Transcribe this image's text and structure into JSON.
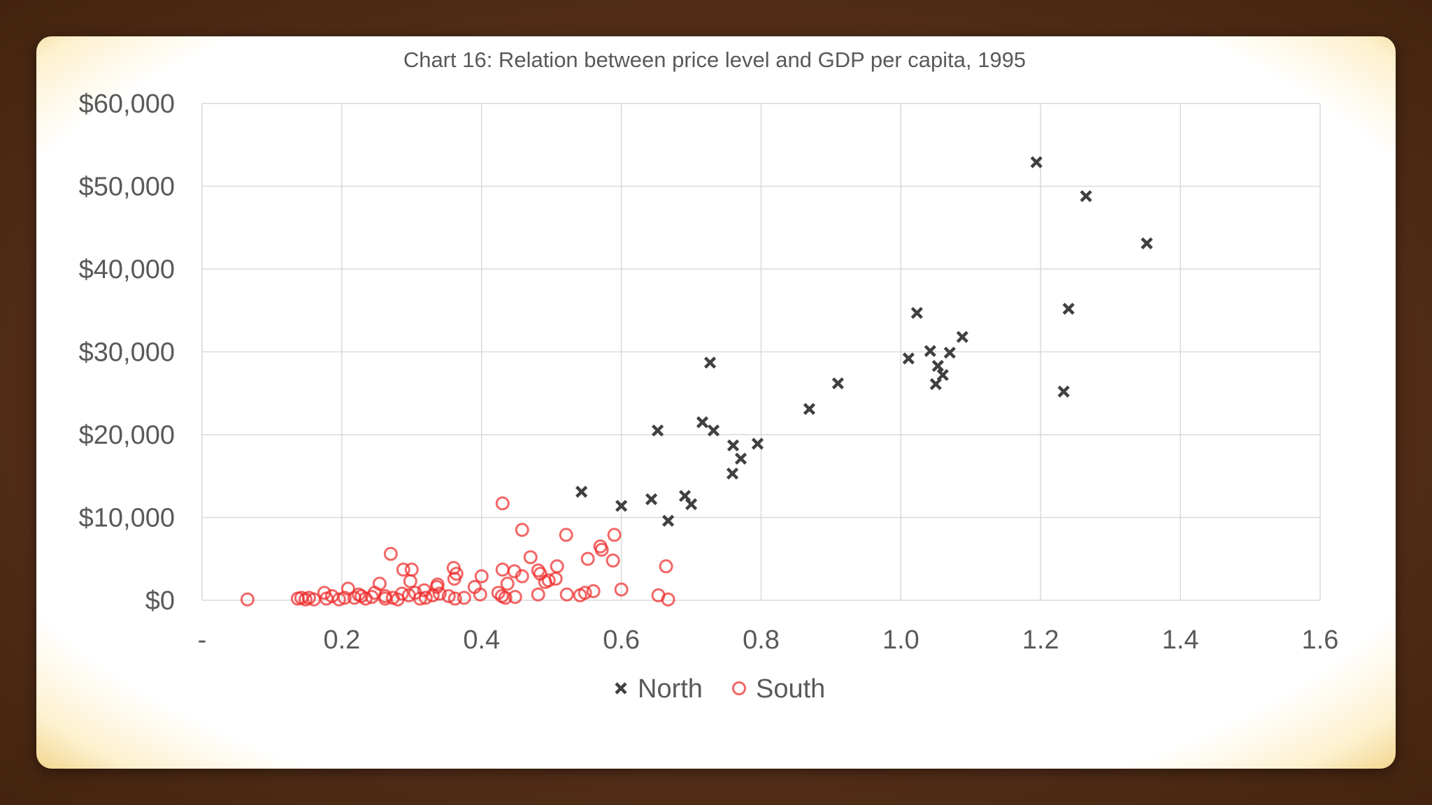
{
  "chart_data": {
    "type": "scatter",
    "title": "Chart 16: Relation between price level and GDP per capita, 1995",
    "xlabel": "",
    "ylabel": "",
    "xlim": [
      0,
      1.6
    ],
    "ylim": [
      0,
      60000
    ],
    "x_ticks": [
      {
        "value": 0,
        "label": "-"
      },
      {
        "value": 0.2,
        "label": "0.2"
      },
      {
        "value": 0.4,
        "label": "0.4"
      },
      {
        "value": 0.6,
        "label": "0.6"
      },
      {
        "value": 0.8,
        "label": "0.8"
      },
      {
        "value": 1.0,
        "label": "1.0"
      },
      {
        "value": 1.2,
        "label": "1.2"
      },
      {
        "value": 1.4,
        "label": "1.4"
      },
      {
        "value": 1.6,
        "label": "1.6"
      }
    ],
    "y_ticks": [
      {
        "value": 0,
        "label": "$0"
      },
      {
        "value": 10000,
        "label": "$10,000"
      },
      {
        "value": 20000,
        "label": "$20,000"
      },
      {
        "value": 30000,
        "label": "$30,000"
      },
      {
        "value": 40000,
        "label": "$40,000"
      },
      {
        "value": 50000,
        "label": "$50,000"
      },
      {
        "value": 60000,
        "label": "$60,000"
      }
    ],
    "grid": true,
    "legend_position": "bottom",
    "series": [
      {
        "name": "North",
        "marker": "x",
        "color": "#404040",
        "points": [
          [
            1.194,
            52900
          ],
          [
            1.265,
            48800
          ],
          [
            1.352,
            43100
          ],
          [
            1.24,
            35200
          ],
          [
            1.023,
            34700
          ],
          [
            1.088,
            31800
          ],
          [
            1.07,
            29900
          ],
          [
            1.042,
            30100
          ],
          [
            1.011,
            29200
          ],
          [
            1.053,
            28300
          ],
          [
            1.06,
            27200
          ],
          [
            1.05,
            26100
          ],
          [
            1.233,
            25200
          ],
          [
            0.91,
            26200
          ],
          [
            0.869,
            23100
          ],
          [
            0.727,
            28700
          ],
          [
            0.716,
            21500
          ],
          [
            0.732,
            20500
          ],
          [
            0.652,
            20500
          ],
          [
            0.76,
            18700
          ],
          [
            0.795,
            18900
          ],
          [
            0.771,
            17100
          ],
          [
            0.759,
            15300
          ],
          [
            0.543,
            13100
          ],
          [
            0.6,
            11400
          ],
          [
            0.643,
            12200
          ],
          [
            0.691,
            12600
          ],
          [
            0.7,
            11600
          ],
          [
            0.667,
            9600
          ]
        ]
      },
      {
        "name": "South",
        "marker": "o",
        "color": "#ee2b2b",
        "points": [
          [
            0.43,
            11700
          ],
          [
            0.458,
            8500
          ],
          [
            0.521,
            7900
          ],
          [
            0.59,
            7900
          ],
          [
            0.57,
            6500
          ],
          [
            0.572,
            6100
          ],
          [
            0.552,
            5000
          ],
          [
            0.588,
            4800
          ],
          [
            0.664,
            4100
          ],
          [
            0.508,
            4100
          ],
          [
            0.47,
            5200
          ],
          [
            0.481,
            3600
          ],
          [
            0.484,
            3200
          ],
          [
            0.447,
            3500
          ],
          [
            0.458,
            2900
          ],
          [
            0.43,
            3700
          ],
          [
            0.437,
            2000
          ],
          [
            0.4,
            2900
          ],
          [
            0.39,
            1600
          ],
          [
            0.36,
            3900
          ],
          [
            0.364,
            3200
          ],
          [
            0.361,
            2600
          ],
          [
            0.337,
            1900
          ],
          [
            0.336,
            1600
          ],
          [
            0.3,
            3700
          ],
          [
            0.288,
            3700
          ],
          [
            0.27,
            5600
          ],
          [
            0.298,
            2300
          ],
          [
            0.254,
            2000
          ],
          [
            0.209,
            1400
          ],
          [
            0.175,
            900
          ],
          [
            0.496,
            2400
          ],
          [
            0.506,
            2600
          ],
          [
            0.491,
            2200
          ],
          [
            0.6,
            1300
          ],
          [
            0.56,
            1100
          ],
          [
            0.548,
            900
          ],
          [
            0.522,
            700
          ],
          [
            0.541,
            600
          ],
          [
            0.653,
            600
          ],
          [
            0.667,
            100
          ],
          [
            0.481,
            700
          ],
          [
            0.448,
            400
          ],
          [
            0.424,
            900
          ],
          [
            0.429,
            500
          ],
          [
            0.434,
            300
          ],
          [
            0.398,
            700
          ],
          [
            0.375,
            300
          ],
          [
            0.353,
            500
          ],
          [
            0.362,
            200
          ],
          [
            0.34,
            800
          ],
          [
            0.33,
            600
          ],
          [
            0.318,
            1200
          ],
          [
            0.305,
            900
          ],
          [
            0.296,
            600
          ],
          [
            0.286,
            800
          ],
          [
            0.273,
            300
          ],
          [
            0.262,
            500
          ],
          [
            0.247,
            900
          ],
          [
            0.243,
            400
          ],
          [
            0.234,
            200
          ],
          [
            0.224,
            700
          ],
          [
            0.218,
            300
          ],
          [
            0.204,
            300
          ],
          [
            0.196,
            100
          ],
          [
            0.186,
            500
          ],
          [
            0.178,
            200
          ],
          [
            0.16,
            100
          ],
          [
            0.153,
            300
          ],
          [
            0.148,
            100
          ],
          [
            0.142,
            300
          ],
          [
            0.137,
            200
          ],
          [
            0.065,
            100
          ],
          [
            0.32,
            300
          ],
          [
            0.312,
            200
          ],
          [
            0.28,
            100
          ],
          [
            0.228,
            500
          ],
          [
            0.262,
            200
          ]
        ]
      }
    ]
  }
}
